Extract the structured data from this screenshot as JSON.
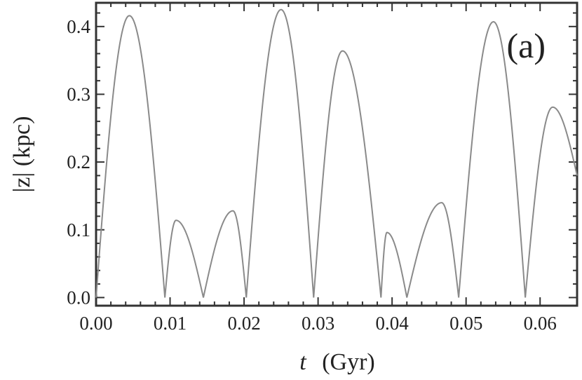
{
  "chart_data": {
    "type": "line",
    "title": "",
    "panel_label": "(a)",
    "xlabel_var": "t",
    "xlabel_unit": "(Gyr)",
    "ylabel": "|z| (kpc)",
    "xlim": [
      0.0,
      0.065
    ],
    "ylim": [
      -0.012,
      0.435
    ],
    "xticks": [
      0.0,
      0.01,
      0.02,
      0.03,
      0.04,
      0.05,
      0.06
    ],
    "xtick_labels": [
      "0.00",
      "0.01",
      "0.02",
      "0.03",
      "0.04",
      "0.05",
      "0.06"
    ],
    "yticks": [
      0.0,
      0.1,
      0.2,
      0.3,
      0.4
    ],
    "ytick_labels": [
      "0.0",
      "0.1",
      "0.2",
      "0.3",
      "0.4"
    ],
    "grid": false,
    "line_color": "#8a8a8a",
    "arches": [
      {
        "t0": 0.0,
        "t1": 0.0093,
        "peak": 0.416,
        "t_peak": 0.0045
      },
      {
        "t0": 0.0093,
        "t1": 0.0145,
        "peak": 0.114,
        "t_peak": 0.0108
      },
      {
        "t0": 0.0145,
        "t1": 0.0203,
        "peak": 0.128,
        "t_peak": 0.0185
      },
      {
        "t0": 0.0203,
        "t1": 0.0294,
        "peak": 0.425,
        "t_peak": 0.025
      },
      {
        "t0": 0.0294,
        "t1": 0.0385,
        "peak": 0.364,
        "t_peak": 0.0333
      },
      {
        "t0": 0.0385,
        "t1": 0.042,
        "peak": 0.096,
        "t_peak": 0.0393
      },
      {
        "t0": 0.042,
        "t1": 0.049,
        "peak": 0.14,
        "t_peak": 0.0467
      },
      {
        "t0": 0.049,
        "t1": 0.058,
        "peak": 0.407,
        "t_peak": 0.0537
      },
      {
        "t0": 0.058,
        "t1": 0.065,
        "peak": 0.281,
        "t_peak": 0.0617,
        "end_value": 0.18
      }
    ]
  }
}
